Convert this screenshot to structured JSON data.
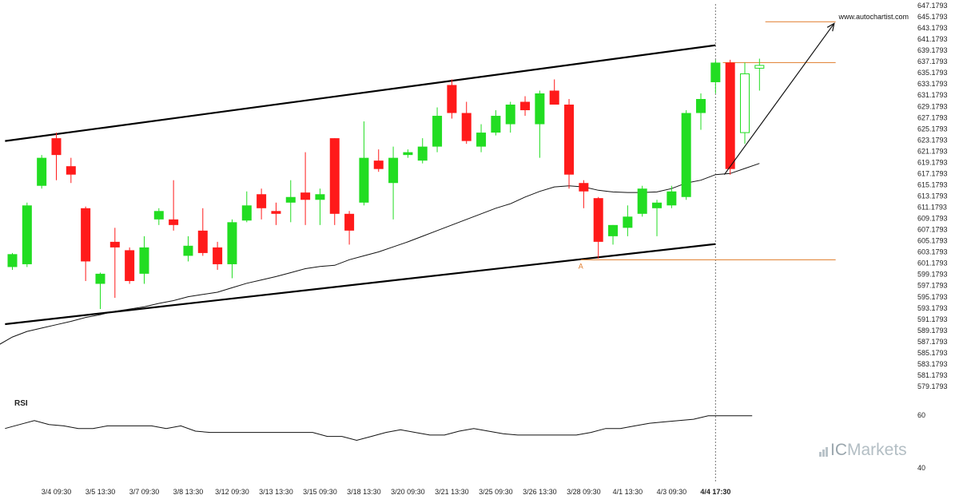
{
  "chart_data": {
    "type": "candlestick",
    "watermark": "www.autochartist.com",
    "brand": {
      "prefix": "IC",
      "suffix": "Markets"
    },
    "colors": {
      "up": "#22dd22",
      "down": "#ff1a1a",
      "ma": "#111111",
      "level": "#e07b2a",
      "channel": "#000000",
      "projection": "#111111"
    },
    "price_axis": {
      "min": 579.1793,
      "max": 647.1793,
      "step": 2,
      "labels": [
        "647.1793",
        "645.1793",
        "643.1793",
        "641.1793",
        "639.1793",
        "637.1793",
        "635.1793",
        "633.1793",
        "631.1793",
        "629.1793",
        "627.1793",
        "625.1793",
        "623.1793",
        "621.1793",
        "619.1793",
        "617.1793",
        "615.1793",
        "613.1793",
        "611.1793",
        "609.1793",
        "607.1793",
        "605.1793",
        "603.1793",
        "601.1793",
        "599.1793",
        "597.1793",
        "595.1793",
        "593.1793",
        "591.1793",
        "589.1793",
        "587.1793",
        "585.1793",
        "583.1793",
        "581.1793",
        "579.1793"
      ]
    },
    "x_labels": [
      {
        "text": "3/4 09:30",
        "i": 3
      },
      {
        "text": "3/5 13:30",
        "i": 6
      },
      {
        "text": "3/7 09:30",
        "i": 9
      },
      {
        "text": "3/8 13:30",
        "i": 12
      },
      {
        "text": "3/12 09:30",
        "i": 15
      },
      {
        "text": "3/13 13:30",
        "i": 18
      },
      {
        "text": "3/15 09:30",
        "i": 21
      },
      {
        "text": "3/18 13:30",
        "i": 24
      },
      {
        "text": "3/20 09:30",
        "i": 27
      },
      {
        "text": "3/21 13:30",
        "i": 30
      },
      {
        "text": "3/25 09:30",
        "i": 33
      },
      {
        "text": "3/26 13:30",
        "i": 36
      },
      {
        "text": "3/28 09:30",
        "i": 39
      },
      {
        "text": "4/1 13:30",
        "i": 42
      },
      {
        "text": "4/3 09:30",
        "i": 45
      },
      {
        "text": "4/4 17:30",
        "i": 48,
        "bold": true
      }
    ],
    "candles": [
      {
        "o": 600.5,
        "h": 603.0,
        "l": 600.0,
        "c": 602.8
      },
      {
        "o": 601.0,
        "h": 612.0,
        "l": 600.5,
        "c": 611.5
      },
      {
        "o": 615.0,
        "h": 620.5,
        "l": 614.5,
        "c": 620.0
      },
      {
        "o": 623.5,
        "h": 624.5,
        "l": 616.0,
        "c": 620.5
      },
      {
        "o": 618.5,
        "h": 620.0,
        "l": 615.5,
        "c": 617.0
      },
      {
        "o": 611.0,
        "h": 611.3,
        "l": 598.0,
        "c": 601.5
      },
      {
        "o": 597.5,
        "h": 599.5,
        "l": 593.0,
        "c": 599.3
      },
      {
        "o": 605.0,
        "h": 607.5,
        "l": 595.0,
        "c": 604.0
      },
      {
        "o": 603.5,
        "h": 604.0,
        "l": 597.5,
        "c": 598.0
      },
      {
        "o": 599.3,
        "h": 606.0,
        "l": 597.5,
        "c": 604.0
      },
      {
        "o": 609.0,
        "h": 611.0,
        "l": 608.0,
        "c": 610.5
      },
      {
        "o": 609.0,
        "h": 616.0,
        "l": 607.0,
        "c": 608.0
      },
      {
        "o": 602.5,
        "h": 606.0,
        "l": 601.5,
        "c": 604.3
      },
      {
        "o": 607.0,
        "h": 611.0,
        "l": 602.5,
        "c": 603.0
      },
      {
        "o": 604.0,
        "h": 605.0,
        "l": 600.0,
        "c": 601.0
      },
      {
        "o": 601.0,
        "h": 609.0,
        "l": 598.5,
        "c": 608.5
      },
      {
        "o": 608.8,
        "h": 614.0,
        "l": 608.5,
        "c": 611.5
      },
      {
        "o": 613.5,
        "h": 614.5,
        "l": 609.0,
        "c": 611.0
      },
      {
        "o": 610.5,
        "h": 612.0,
        "l": 608.0,
        "c": 610.0
      },
      {
        "o": 612.0,
        "h": 616.0,
        "l": 608.5,
        "c": 613.0
      },
      {
        "o": 613.8,
        "h": 621.0,
        "l": 608.0,
        "c": 612.5
      },
      {
        "o": 612.5,
        "h": 614.5,
        "l": 608.0,
        "c": 613.5
      },
      {
        "o": 623.5,
        "h": 623.5,
        "l": 608.0,
        "c": 610.0
      },
      {
        "o": 610.0,
        "h": 610.5,
        "l": 604.5,
        "c": 607.0
      },
      {
        "o": 612.0,
        "h": 626.5,
        "l": 611.5,
        "c": 620.0
      },
      {
        "o": 619.5,
        "h": 621.5,
        "l": 617.5,
        "c": 618.0
      },
      {
        "o": 615.5,
        "h": 622.0,
        "l": 609.0,
        "c": 620.0
      },
      {
        "o": 620.5,
        "h": 621.5,
        "l": 620.0,
        "c": 621.0
      },
      {
        "o": 619.5,
        "h": 623.5,
        "l": 619.0,
        "c": 622.0
      },
      {
        "o": 622.0,
        "h": 629.0,
        "l": 621.0,
        "c": 627.5
      },
      {
        "o": 633.0,
        "h": 634.0,
        "l": 627.0,
        "c": 628.0
      },
      {
        "o": 628.0,
        "h": 630.0,
        "l": 622.5,
        "c": 623.0
      },
      {
        "o": 622.0,
        "h": 626.0,
        "l": 621.0,
        "c": 624.5
      },
      {
        "o": 624.5,
        "h": 628.5,
        "l": 624.0,
        "c": 627.5
      },
      {
        "o": 626.0,
        "h": 630.0,
        "l": 624.5,
        "c": 629.5
      },
      {
        "o": 630.0,
        "h": 631.0,
        "l": 627.5,
        "c": 628.5
      },
      {
        "o": 626.0,
        "h": 632.0,
        "l": 620.0,
        "c": 631.5
      },
      {
        "o": 632.0,
        "h": 634.0,
        "l": 629.5,
        "c": 629.5
      },
      {
        "o": 629.5,
        "h": 630.5,
        "l": 614.5,
        "c": 617.0
      },
      {
        "o": 615.5,
        "h": 616.0,
        "l": 611.0,
        "c": 614.0
      },
      {
        "o": 612.8,
        "h": 613.0,
        "l": 602.0,
        "c": 605.0
      },
      {
        "o": 606.0,
        "h": 608.0,
        "l": 604.5,
        "c": 608.0
      },
      {
        "o": 607.5,
        "h": 611.5,
        "l": 606.0,
        "c": 609.5
      },
      {
        "o": 610.0,
        "h": 615.0,
        "l": 609.5,
        "c": 614.5
      },
      {
        "o": 611.0,
        "h": 612.5,
        "l": 606.0,
        "c": 612.0
      },
      {
        "o": 611.5,
        "h": 615.0,
        "l": 611.0,
        "c": 614.0
      },
      {
        "o": 613.0,
        "h": 628.5,
        "l": 612.5,
        "c": 628.0
      },
      {
        "o": 628.0,
        "h": 631.5,
        "l": 625.0,
        "c": 630.5
      },
      {
        "o": 633.5,
        "h": 637.5,
        "l": 631.5,
        "c": 637.0
      },
      {
        "o": 637.0,
        "h": 637.5,
        "l": 617.0,
        "c": 618.0
      },
      {
        "o": 624.5,
        "h": 637.0,
        "l": 622.5,
        "c": 635.0,
        "hollow": true
      },
      {
        "o": 636.0,
        "h": 637.7,
        "l": 632.0,
        "c": 636.5,
        "hollow": true
      }
    ],
    "moving_average": [
      [
        -4,
        582.0
      ],
      [
        -3,
        583.5
      ],
      [
        -2,
        585.0
      ],
      [
        -1,
        586.5
      ],
      [
        0,
        588.0
      ],
      [
        1,
        589.0
      ],
      [
        2,
        589.6
      ],
      [
        3,
        590.2
      ],
      [
        4,
        590.8
      ],
      [
        5,
        591.5
      ],
      [
        6,
        592.0
      ],
      [
        7,
        592.6
      ],
      [
        8,
        593.0
      ],
      [
        9,
        593.4
      ],
      [
        10,
        594.0
      ],
      [
        11,
        594.5
      ],
      [
        12,
        595.2
      ],
      [
        13,
        595.6
      ],
      [
        14,
        596.0
      ],
      [
        15,
        596.8
      ],
      [
        16,
        597.6
      ],
      [
        17,
        598.2
      ],
      [
        18,
        598.8
      ],
      [
        19,
        599.5
      ],
      [
        20,
        600.2
      ],
      [
        21,
        600.6
      ],
      [
        22,
        600.8
      ],
      [
        23,
        601.8
      ],
      [
        24,
        602.5
      ],
      [
        25,
        603.2
      ],
      [
        26,
        604.1
      ],
      [
        27,
        605.0
      ],
      [
        28,
        606.0
      ],
      [
        29,
        607.0
      ],
      [
        30,
        608.0
      ],
      [
        31,
        609.0
      ],
      [
        32,
        610.0
      ],
      [
        33,
        611.0
      ],
      [
        34,
        611.8
      ],
      [
        35,
        613.0
      ],
      [
        36,
        614.0
      ],
      [
        37,
        614.8
      ],
      [
        38,
        615.0
      ],
      [
        39,
        614.8
      ],
      [
        40,
        614.2
      ],
      [
        41,
        613.9
      ],
      [
        42,
        613.8
      ],
      [
        43,
        613.8
      ],
      [
        44,
        613.9
      ],
      [
        45,
        614.5
      ],
      [
        46,
        615.5
      ],
      [
        47,
        616.0
      ],
      [
        48,
        617.0
      ],
      [
        49,
        617.2
      ],
      [
        50,
        618.1
      ],
      [
        51,
        619.0
      ]
    ],
    "channel": {
      "upper": {
        "from": [
          -0.5,
          623.0
        ],
        "to": [
          48,
          640.1
        ]
      },
      "lower": {
        "from": [
          -0.5,
          590.3
        ],
        "to": [
          48,
          604.6
        ]
      }
    },
    "levels": [
      {
        "price": 601.8,
        "from": 38.8,
        "to": 56.2,
        "label": "A",
        "label_at": 38.8
      },
      {
        "price": 637.0,
        "from": 48.5,
        "to": 56.2
      },
      {
        "price": 644.3,
        "from": 51.4,
        "to": 56.2
      }
    ],
    "projection": {
      "from": [
        48.6,
        617.0
      ],
      "to": [
        56.1,
        644.0
      ]
    },
    "current_time_index": 48,
    "rsi": {
      "title": "RSI",
      "axis": {
        "min": 37,
        "max": 64,
        "ticks": [
          60,
          40
        ]
      },
      "values": [
        [
          -0.5,
          55.0
        ],
        [
          0.5,
          56.5
        ],
        [
          1.5,
          58.0
        ],
        [
          2.5,
          56.5
        ],
        [
          3.5,
          56.0
        ],
        [
          4.5,
          55.0
        ],
        [
          5.5,
          55.0
        ],
        [
          6.5,
          56.0
        ],
        [
          7.5,
          56.0
        ],
        [
          8.5,
          56.0
        ],
        [
          9.5,
          56.0
        ],
        [
          10.5,
          55.0
        ],
        [
          11.5,
          56.0
        ],
        [
          12.5,
          54.0
        ],
        [
          13.5,
          53.5
        ],
        [
          14.5,
          53.5
        ],
        [
          15.5,
          53.5
        ],
        [
          16.5,
          53.5
        ],
        [
          17.5,
          53.5
        ],
        [
          18.5,
          53.5
        ],
        [
          19.5,
          53.5
        ],
        [
          20.5,
          53.5
        ],
        [
          21.5,
          52.0
        ],
        [
          22.5,
          52.0
        ],
        [
          23.5,
          50.5
        ],
        [
          24.5,
          52.0
        ],
        [
          25.5,
          53.5
        ],
        [
          26.5,
          54.5
        ],
        [
          27.5,
          53.5
        ],
        [
          28.5,
          52.5
        ],
        [
          29.5,
          52.5
        ],
        [
          30.5,
          54.0
        ],
        [
          31.5,
          55.0
        ],
        [
          32.5,
          54.0
        ],
        [
          33.5,
          53.0
        ],
        [
          34.5,
          52.5
        ],
        [
          35.5,
          52.5
        ],
        [
          36.5,
          52.5
        ],
        [
          37.5,
          52.5
        ],
        [
          38.5,
          52.5
        ],
        [
          39.5,
          53.5
        ],
        [
          40.5,
          55.0
        ],
        [
          41.5,
          55.0
        ],
        [
          42.5,
          56.0
        ],
        [
          43.5,
          57.0
        ],
        [
          44.5,
          57.5
        ],
        [
          45.5,
          58.0
        ],
        [
          46.5,
          58.5
        ],
        [
          47.5,
          59.8
        ],
        [
          48.5,
          59.8
        ],
        [
          49.5,
          59.8
        ],
        [
          50.5,
          59.8
        ]
      ]
    }
  }
}
